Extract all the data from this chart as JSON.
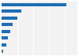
{
  "values": [
    41.2,
    12.5,
    9.8,
    7.2,
    5.5,
    4.1,
    2.8,
    0.9
  ],
  "bar_colors": [
    "#1e6eb5",
    "#1e6eb5",
    "#1e6eb5",
    "#1e6eb5",
    "#1e6eb5",
    "#1e6eb5",
    "#1e6eb5",
    "#4a7a5a"
  ],
  "background_color": "#ffffff",
  "plot_bg_color": "#f2f2f2",
  "xlim": [
    0,
    48
  ],
  "grid_color": "#ffffff",
  "bar_height": 0.5
}
